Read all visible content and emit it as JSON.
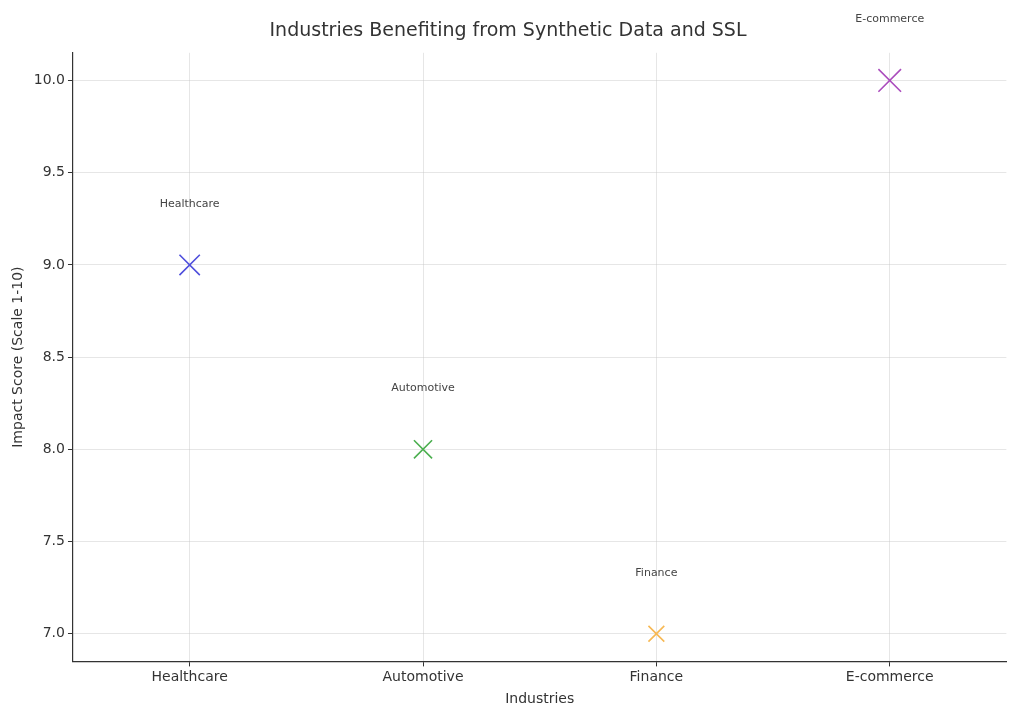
{
  "chart_data": {
    "type": "scatter",
    "title": "Industries Benefiting from Synthetic Data and SSL",
    "x_label": "Industries",
    "y_label": "Impact Score (Scale 1-10)",
    "categories": [
      "Healthcare",
      "Automotive",
      "Finance",
      "E-commerce"
    ],
    "values": [
      9,
      8,
      7,
      10
    ],
    "colors": [
      "#4f4fdc",
      "#4caf50",
      "#f7b955",
      "#ab4dbd"
    ],
    "marker": "x",
    "ylim": [
      6.85,
      10.15
    ],
    "yticks": [
      {
        "value": 7,
        "label": "7.0"
      },
      {
        "value": 7.5,
        "label": "7.5"
      },
      {
        "value": 8,
        "label": "8.0"
      },
      {
        "value": 8.5,
        "label": "8.5"
      },
      {
        "value": 9,
        "label": "9.0"
      },
      {
        "value": 9.5,
        "label": "9.5"
      },
      {
        "value": 10,
        "label": "10.0"
      }
    ],
    "grid": true,
    "annotations": [
      {
        "text": "Healthcare",
        "x": "Healthcare",
        "y": 9.33
      },
      {
        "text": "Automotive",
        "x": "Automotive",
        "y": 8.33
      },
      {
        "text": "Finance",
        "x": "Finance",
        "y": 7.33
      },
      {
        "text": "E-commerce",
        "x": "E-commerce",
        "y": 10.33
      }
    ]
  }
}
